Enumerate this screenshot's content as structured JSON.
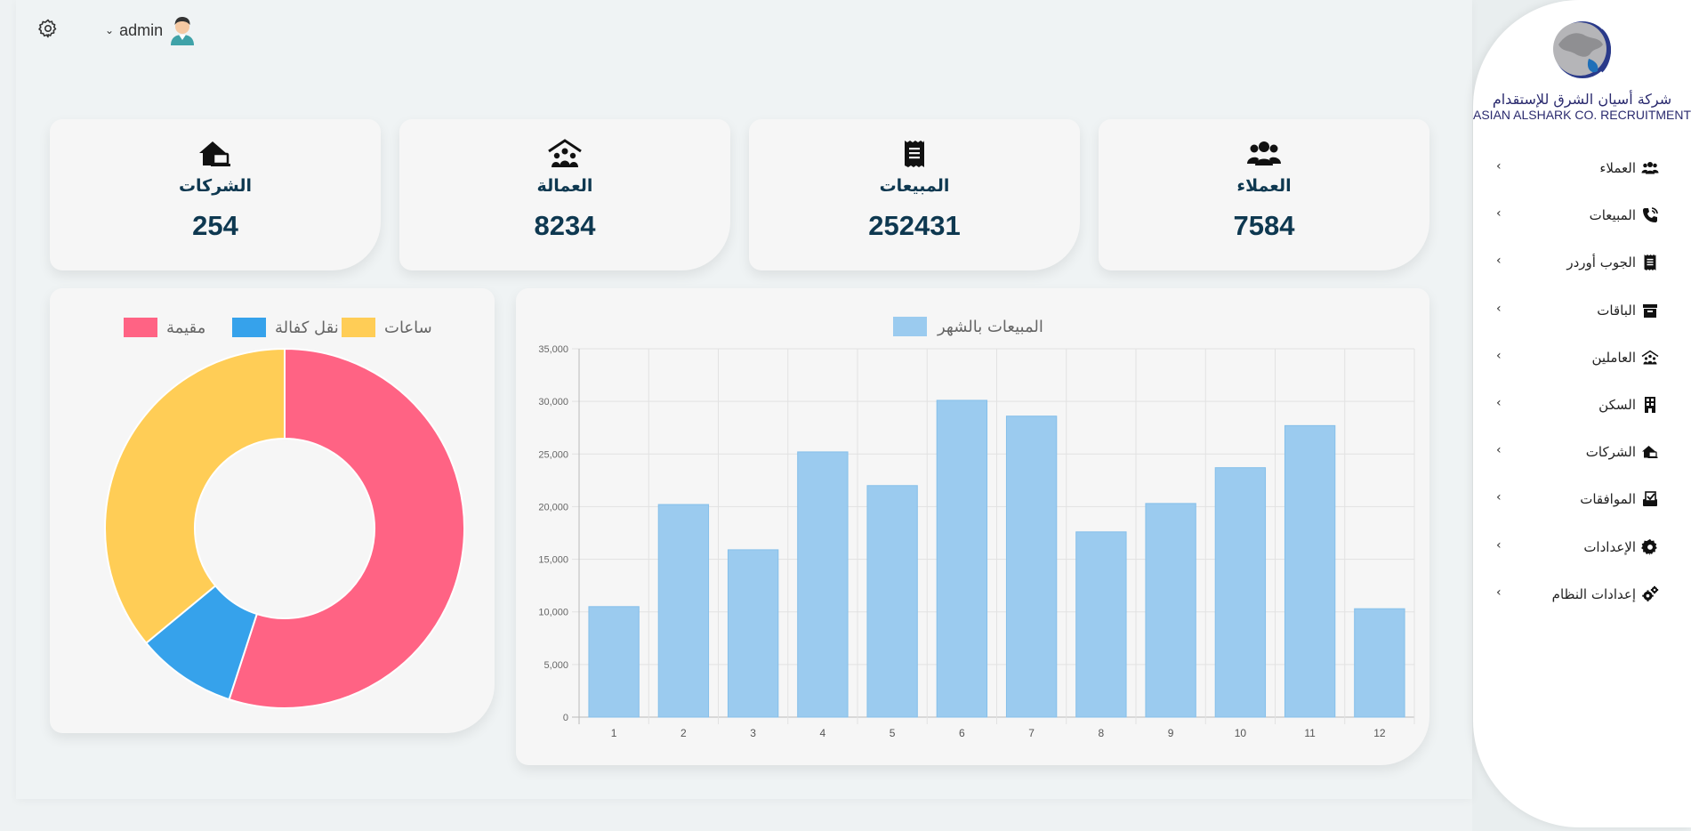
{
  "topbar": {
    "username": "admin",
    "settings_icon": "gear-icon",
    "user_chevron_icon": "chevron-down-icon",
    "avatar_icon": "user-avatar-icon"
  },
  "stats": [
    {
      "icon": "users-icon",
      "label": "العملاء",
      "value": "7584"
    },
    {
      "icon": "receipt-icon",
      "label": "المبيعات",
      "value": "252431"
    },
    {
      "icon": "house-people-icon",
      "label": "العمالة",
      "value": "8234"
    },
    {
      "icon": "house-laptop-icon",
      "label": "الشركات",
      "value": "254"
    }
  ],
  "brand": {
    "name_ar": "شركة أسيان الشرق للإستقدام",
    "name_en": "ASIAN ALSHARK CO. RECRUITMENT"
  },
  "sidebar": {
    "items": [
      {
        "label": "العملاء",
        "icon": "users-icon"
      },
      {
        "label": "المبيعات",
        "icon": "phone-volume-icon"
      },
      {
        "label": "الجوب أوردر",
        "icon": "receipt-icon"
      },
      {
        "label": "الباقات",
        "icon": "archive-box-icon"
      },
      {
        "label": "العاملين",
        "icon": "house-people-icon"
      },
      {
        "label": "السكن",
        "icon": "building-icon"
      },
      {
        "label": "الشركات",
        "icon": "house-laptop-icon"
      },
      {
        "label": "الموافقات",
        "icon": "inbox-check-icon"
      },
      {
        "label": "الإعدادات",
        "icon": "gear-icon"
      },
      {
        "label": "إعدادات النظام",
        "icon": "gears-icon"
      }
    ]
  },
  "donut": {
    "chart_data": {
      "type": "pie",
      "labels": [
        "مقيمة",
        "نقل كفالة",
        "ساعات"
      ],
      "values": [
        55,
        9,
        36
      ],
      "colors": [
        "#ff6384",
        "#36a2eb",
        "#ffcd56"
      ],
      "legend": "top"
    }
  },
  "bar": {
    "chart_data": {
      "type": "bar",
      "categories": [
        "1",
        "2",
        "3",
        "4",
        "5",
        "6",
        "7",
        "8",
        "9",
        "10",
        "11",
        "12"
      ],
      "series": [
        {
          "name": "المبيعات بالشهر",
          "values": [
            10500,
            20200,
            15900,
            25200,
            22000,
            30100,
            28600,
            17600,
            20300,
            23700,
            27700,
            10300
          ]
        }
      ],
      "ylim": [
        0,
        35000
      ],
      "yticks": [
        "0",
        "5,000",
        "10,000",
        "15,000",
        "20,000",
        "25,000",
        "30,000",
        "35,000"
      ],
      "color": "#9bcbef",
      "grid": true,
      "legend": "top"
    }
  }
}
